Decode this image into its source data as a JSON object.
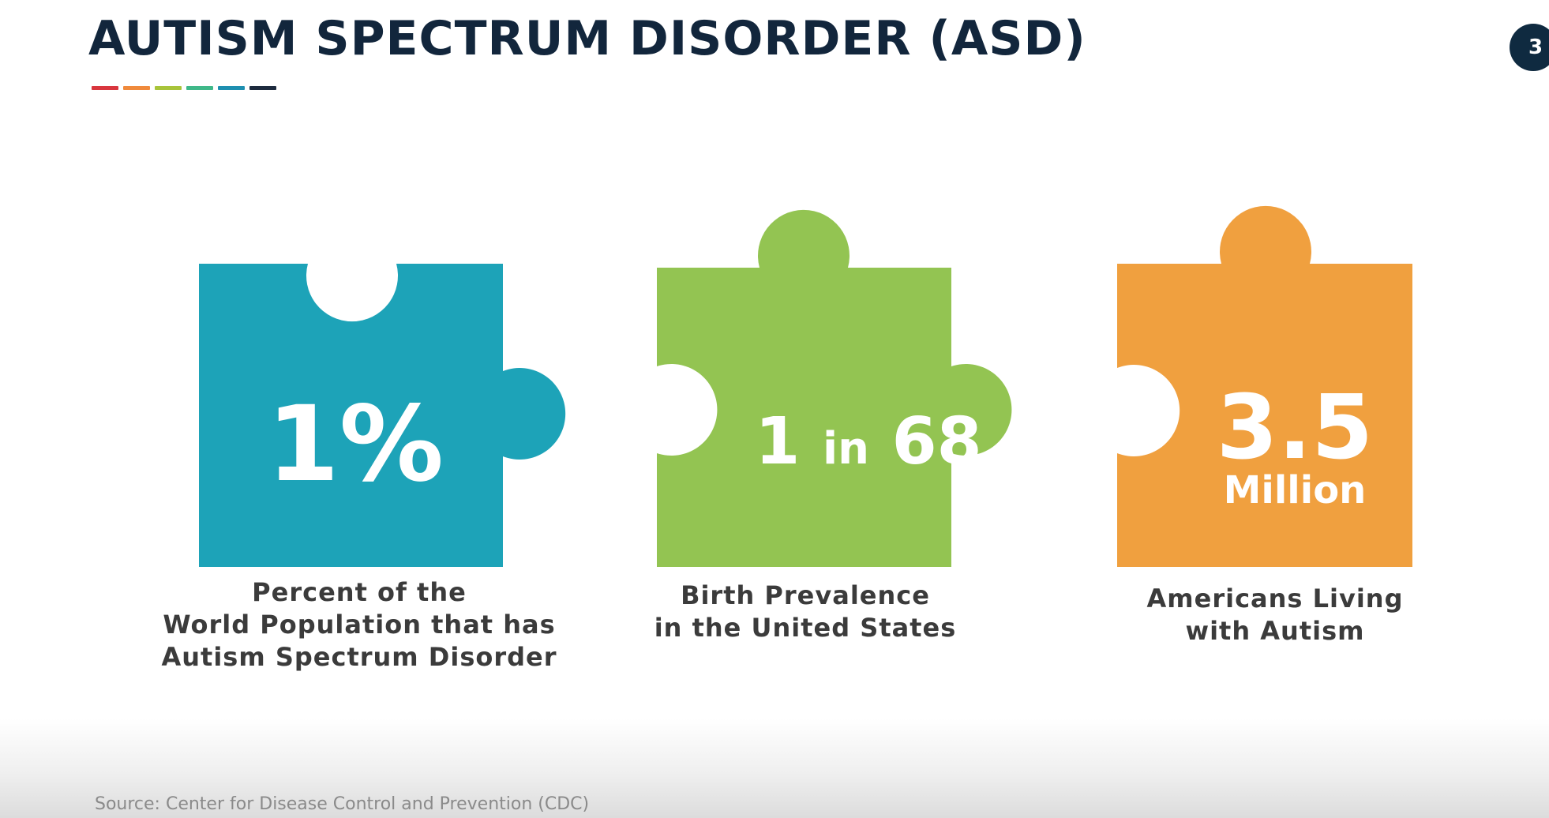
{
  "slide": {
    "title": "AUTISM SPECTRUM DISORDER (ASD)",
    "page_number": "3",
    "accent_colors": [
      "#d9363e",
      "#f08a3c",
      "#a8c43a",
      "#3fb889",
      "#1e8fb0",
      "#1d2b3e"
    ],
    "source": "Source: Center for  Disease Control and Prevention (CDC)"
  },
  "stats": [
    {
      "value": "1%",
      "caption": [
        "Percent of the",
        "World Population that has",
        "Autism Spectrum Disorder"
      ],
      "color": "#1da3b8",
      "icon": "puzzle-piece-icon"
    },
    {
      "value_number": "1",
      "value_word": "in",
      "value_number2": "68",
      "caption": [
        "Birth Prevalence",
        "in the United States"
      ],
      "color": "#93c452",
      "icon": "puzzle-piece-icon"
    },
    {
      "value": "3.5",
      "unit": "Million",
      "caption": [
        "Americans Living",
        "with Autism"
      ],
      "color": "#f0a03f",
      "icon": "puzzle-piece-icon"
    }
  ]
}
